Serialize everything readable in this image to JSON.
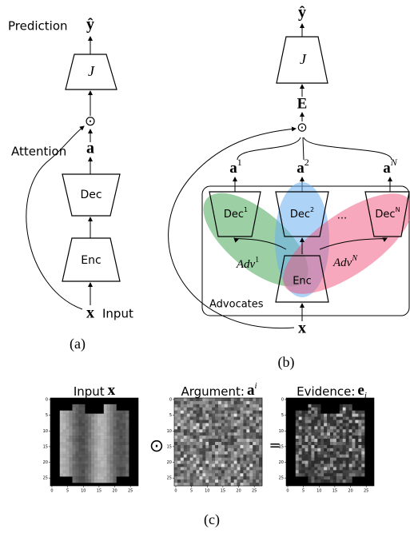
{
  "panel_a": {
    "prediction": "Prediction",
    "y_hat": "ŷ",
    "J": "J",
    "odot": "⊙",
    "attention": "Attention",
    "a": "a",
    "dec": "Dec",
    "enc": "Enc",
    "x": "x",
    "input": "Input",
    "caption": "(a)"
  },
  "panel_b": {
    "y_hat": "ŷ",
    "J": "J",
    "E": "E",
    "odot": "⊙",
    "a1": {
      "base": "a",
      "sup": "1"
    },
    "a2": {
      "base": "a",
      "sup": "2"
    },
    "aN": {
      "base": "a",
      "sup": "N"
    },
    "dec1": {
      "base": "Dec",
      "sup": "1"
    },
    "dec2": {
      "base": "Dec",
      "sup": "2"
    },
    "ellipsis": "...",
    "decN": {
      "base": "Dec",
      "sup": "N"
    },
    "adv1": {
      "base": "Adv",
      "sup": "1"
    },
    "advN": {
      "base": "Adv",
      "sup": "N"
    },
    "enc": "Enc",
    "advocates": "Advocates",
    "x": "x",
    "caption": "(b)"
  },
  "panel_c": {
    "input": {
      "label": "Input",
      "symbol": "x"
    },
    "argument": {
      "label": "Argument:",
      "symbol": "a",
      "sup": "i"
    },
    "evidence": {
      "label": "Evidence:",
      "symbol": "e",
      "sub": "i"
    },
    "odot": "⊙",
    "equals": "=",
    "ticks": [
      0,
      5,
      10,
      15,
      20,
      25
    ],
    "caption": "(c)"
  }
}
